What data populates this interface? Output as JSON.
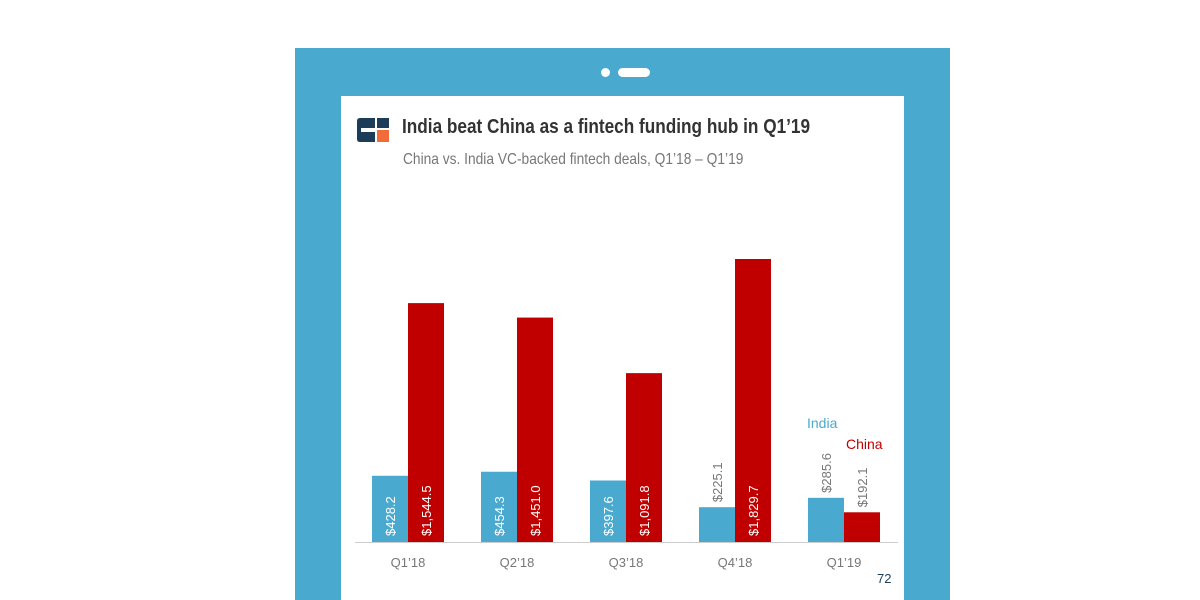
{
  "title": "India beat China as a fintech funding hub in Q1’19",
  "subtitle": "China vs. India VC-backed fintech deals, Q1’18 – Q1’19",
  "page_number": "72",
  "colors": {
    "frame": "#4aa9cf",
    "india": "#4aa9cf",
    "china": "#c00000",
    "axis": "#cccccc",
    "logo_dark": "#1c3d5a",
    "logo_accent": "#f26b3a"
  },
  "icons": {
    "logo": "cb-insights-logo"
  },
  "chart_data": {
    "type": "bar",
    "title": "India beat China as a fintech funding hub in Q1’19",
    "subtitle": "China vs. India VC-backed fintech deals, Q1’18 – Q1’19",
    "xlabel": "",
    "ylabel": "",
    "categories": [
      "Q1’18",
      "Q2’18",
      "Q3’18",
      "Q4’18",
      "Q1’19"
    ],
    "series": [
      {
        "name": "India",
        "values": [
          428.2,
          454.3,
          397.6,
          225.1,
          285.6
        ],
        "labels": [
          "$428.2",
          "$454.3",
          "$397.6",
          "$225.1",
          "$285.6"
        ]
      },
      {
        "name": "China",
        "values": [
          1544.5,
          1451.0,
          1091.8,
          1829.7,
          192.1
        ],
        "labels": [
          "$1,544.5",
          "$1,451.0",
          "$1,091.8",
          "$1,829.7",
          "$192.1"
        ]
      }
    ],
    "ylim": [
      0,
      1829.7
    ],
    "grid": false,
    "legend": "annotations above last group"
  }
}
